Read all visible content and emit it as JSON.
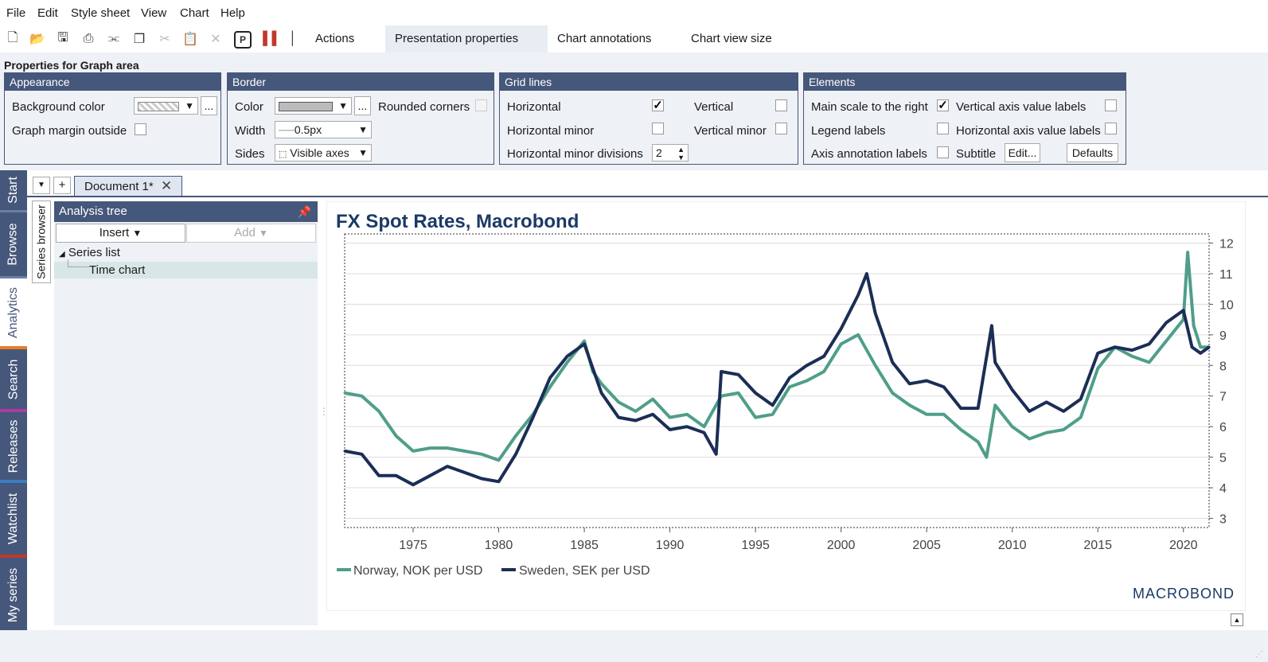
{
  "menu": [
    "File",
    "Edit",
    "Style sheet",
    "View",
    "Chart",
    "Help"
  ],
  "toolbar": {
    "icons": [
      "new-document-icon",
      "open-folder-icon",
      "save-icon",
      "print-icon",
      "share-icon",
      "copy-icon",
      "cut-icon",
      "paste-icon",
      "delete-icon",
      "presentation-p-icon",
      "chart-bars-icon",
      "ruler-icon"
    ],
    "tabs": [
      "Actions",
      "Presentation properties",
      "Chart annotations",
      "Chart view size"
    ]
  },
  "props": {
    "title": "Properties for Graph area",
    "appearance": {
      "head": "Appearance",
      "bg_label": "Background color",
      "bg_btn": "...",
      "margin_label": "Graph margin outside"
    },
    "border": {
      "head": "Border",
      "color_label": "Color",
      "color_btn": "...",
      "rounded_label": "Rounded corners",
      "width_label": "Width",
      "width_value": "0.5px",
      "sides_label": "Sides",
      "sides_value": "Visible axes"
    },
    "grid": {
      "head": "Grid lines",
      "horizontal": "Horizontal",
      "vertical": "Vertical",
      "hminor": "Horizontal minor",
      "vminor": "Vertical minor",
      "hdiv": "Horizontal minor divisions",
      "hdiv_value": "2"
    },
    "elements": {
      "head": "Elements",
      "main_right": "Main scale to the right",
      "v_axis_labels": "Vertical axis value labels",
      "legend_labels": "Legend labels",
      "h_axis_labels": "Horizontal axis value labels",
      "axis_annot": "Axis annotation labels",
      "subtitle": "Subtitle",
      "edit_btn": "Edit...",
      "defaults_btn": "Defaults"
    }
  },
  "rail": [
    "Start",
    "Browse",
    "Analytics",
    "Search",
    "Releases",
    "Watchlist",
    "My series"
  ],
  "doc": {
    "tab": "Document 1*",
    "series_browser": "Series browser"
  },
  "tree": {
    "title": "Analysis tree",
    "insert": "Insert",
    "add": "Add",
    "root": "Series list",
    "child": "Time chart"
  },
  "colors": {
    "nok": "#4f9e8a",
    "sek": "#1b2e55",
    "header": "#45577a"
  },
  "chart_data": {
    "type": "line",
    "title": "FX Spot Rates, Macrobond",
    "x_ticks": [
      1975,
      1980,
      1985,
      1990,
      1995,
      2000,
      2005,
      2010,
      2015,
      2020
    ],
    "y_ticks": [
      3,
      4,
      5,
      6,
      7,
      8,
      9,
      10,
      11,
      12
    ],
    "xlim": [
      1971,
      2021.5
    ],
    "ylim": [
      2.7,
      12.3
    ],
    "axis_side": "right",
    "grid": "horizontal",
    "legend_position": "bottom-left",
    "brand": "MACROBOND",
    "series": [
      {
        "name": "Norway, NOK per USD",
        "color": "#4f9e8a",
        "x": [
          1971,
          1972,
          1973,
          1974,
          1975,
          1976,
          1977,
          1978,
          1979,
          1980,
          1981,
          1982,
          1983,
          1984,
          1985,
          1985.5,
          1986,
          1987,
          1988,
          1989,
          1990,
          1991,
          1992,
          1993,
          1994,
          1995,
          1996,
          1997,
          1998,
          1999,
          2000,
          2001,
          2002,
          2003,
          2004,
          2005,
          2006,
          2007,
          2008,
          2008.5,
          2009,
          2010,
          2011,
          2012,
          2013,
          2014,
          2015,
          2016,
          2017,
          2018,
          2019,
          2020,
          2020.25,
          2020.6,
          2021,
          2021.5
        ],
        "y": [
          7.1,
          7.0,
          6.5,
          5.7,
          5.2,
          5.3,
          5.3,
          5.2,
          5.1,
          4.9,
          5.7,
          6.4,
          7.3,
          8.1,
          8.8,
          7.8,
          7.4,
          6.8,
          6.5,
          6.9,
          6.3,
          6.4,
          6.0,
          7.0,
          7.1,
          6.3,
          6.4,
          7.3,
          7.5,
          7.8,
          8.7,
          9.0,
          8.0,
          7.1,
          6.7,
          6.4,
          6.4,
          5.9,
          5.5,
          5.0,
          6.7,
          6.0,
          5.6,
          5.8,
          5.9,
          6.3,
          7.9,
          8.6,
          8.3,
          8.1,
          8.8,
          9.5,
          11.7,
          9.3,
          8.6,
          8.6
        ]
      },
      {
        "name": "Sweden, SEK per USD",
        "color": "#1b2e55",
        "x": [
          1971,
          1972,
          1973,
          1974,
          1975,
          1976,
          1977,
          1978,
          1979,
          1980,
          1981,
          1982,
          1983,
          1984,
          1985,
          1986,
          1987,
          1988,
          1989,
          1990,
          1991,
          1992,
          1992.7,
          1993,
          1994,
          1995,
          1996,
          1997,
          1998,
          1999,
          2000,
          2001,
          2001.5,
          2002,
          2003,
          2004,
          2005,
          2006,
          2007,
          2008,
          2008.8,
          2009,
          2010,
          2011,
          2012,
          2013,
          2014,
          2015,
          2016,
          2017,
          2018,
          2019,
          2020,
          2020.5,
          2021,
          2021.5
        ],
        "y": [
          5.2,
          5.1,
          4.4,
          4.4,
          4.1,
          4.4,
          4.7,
          4.5,
          4.3,
          4.2,
          5.1,
          6.3,
          7.6,
          8.3,
          8.7,
          7.1,
          6.3,
          6.2,
          6.4,
          5.9,
          6.0,
          5.8,
          5.1,
          7.8,
          7.7,
          7.1,
          6.7,
          7.6,
          8.0,
          8.3,
          9.2,
          10.3,
          11.0,
          9.7,
          8.1,
          7.4,
          7.5,
          7.3,
          6.6,
          6.6,
          9.3,
          8.1,
          7.2,
          6.5,
          6.8,
          6.5,
          6.9,
          8.4,
          8.6,
          8.5,
          8.7,
          9.4,
          9.8,
          8.6,
          8.4,
          8.6
        ]
      }
    ]
  }
}
